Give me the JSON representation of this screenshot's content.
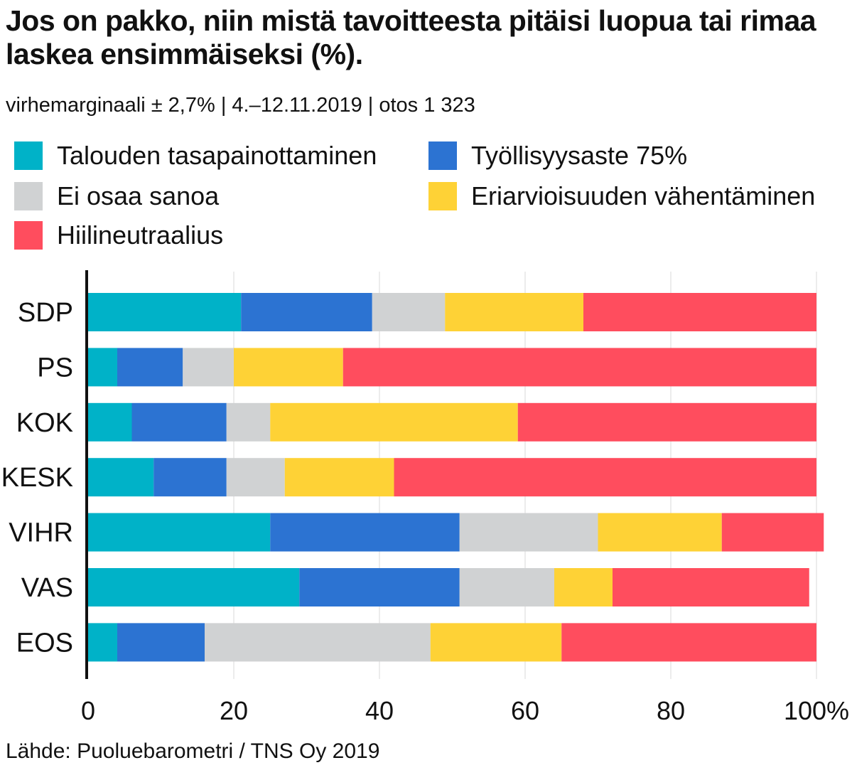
{
  "title": "Jos on pakko, niin mistä tavoitteesta pitäisi luopua tai rimaa laskea ensimmäiseksi (%).",
  "subtitle": "virhemarginaali ± 2,7% | 4.–12.11.2019 | otos 1 323",
  "source": "Lähde: Puoluebarometri / TNS Oy 2019",
  "legend": [
    {
      "label": "Talouden tasapainottaminen",
      "color": "#00b2c8"
    },
    {
      "label": "Työllisyysaste 75%",
      "color": "#2c73d2"
    },
    {
      "label": "Ei osaa sanoa",
      "color": "#d0d2d3"
    },
    {
      "label": "Eriarvioisuuden vähentäminen",
      "color": "#fed236"
    },
    {
      "label": "Hiilineutraalius",
      "color": "#ff4d5e"
    }
  ],
  "chart_data": {
    "type": "bar",
    "orientation": "horizontal",
    "stacked": true,
    "title": "Jos on pakko, niin mistä tavoitteesta pitäisi luopua tai rimaa laskea ensimmäiseksi (%).",
    "xlabel": "",
    "ylabel": "",
    "xlim": [
      0,
      100
    ],
    "xticks": [
      "0",
      "20",
      "40",
      "60",
      "80",
      "100%"
    ],
    "grid": true,
    "categories": [
      "SDP",
      "PS",
      "KOK",
      "KESK",
      "VIHR",
      "VAS",
      "EOS"
    ],
    "series": [
      {
        "name": "Talouden tasapainottaminen",
        "color": "#00b2c8",
        "values": [
          21,
          4,
          6,
          9,
          25,
          29,
          4
        ]
      },
      {
        "name": "Työllisyysaste 75%",
        "color": "#2c73d2",
        "values": [
          18,
          9,
          13,
          10,
          26,
          22,
          12
        ]
      },
      {
        "name": "Ei osaa sanoa",
        "color": "#d0d2d3",
        "values": [
          10,
          7,
          6,
          8,
          19,
          13,
          31
        ]
      },
      {
        "name": "Eriarvioisuuden vähentäminen",
        "color": "#fed236",
        "values": [
          19,
          15,
          34,
          15,
          17,
          8,
          18
        ]
      },
      {
        "name": "Hiilineutraalius",
        "color": "#ff4d5e",
        "values": [
          32,
          65,
          41,
          58,
          14,
          27,
          35
        ]
      }
    ]
  }
}
